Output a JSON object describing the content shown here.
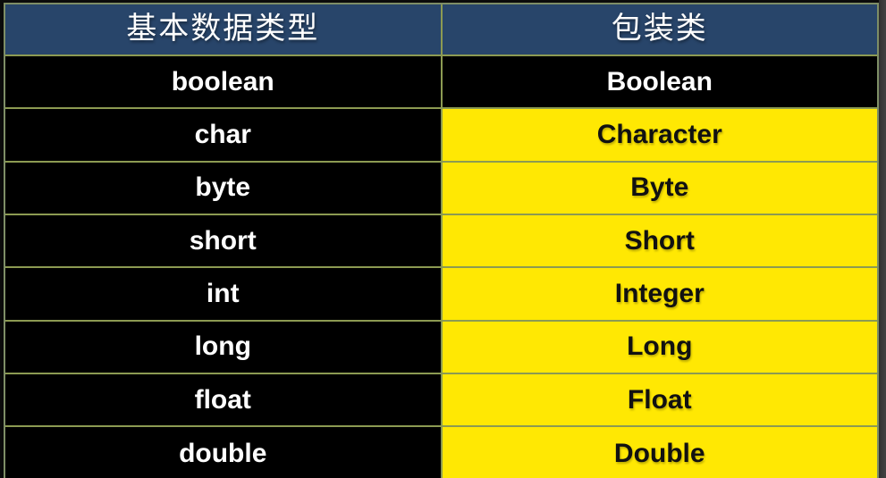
{
  "colors": {
    "header_bg": "#28456a",
    "header_text": "#ffffff",
    "row_bg": "#000000",
    "row_text": "#ffffff",
    "highlight_bg": "#ffe803",
    "highlight_text": "#111111",
    "border": "#8c9a52",
    "outer_border": "#7e8e66",
    "stage_bg": "#0b0b0b",
    "strip_bg": "#3a3a3a"
  },
  "table": {
    "columns": [
      {
        "label": "基本数据类型"
      },
      {
        "label": "包装类"
      }
    ],
    "rows": [
      {
        "primitive": "boolean",
        "wrapper": "Boolean",
        "wrapper_highlighted": false
      },
      {
        "primitive": "char",
        "wrapper": "Character",
        "wrapper_highlighted": true
      },
      {
        "primitive": "byte",
        "wrapper": "Byte",
        "wrapper_highlighted": true
      },
      {
        "primitive": "short",
        "wrapper": "Short",
        "wrapper_highlighted": true
      },
      {
        "primitive": "int",
        "wrapper": "Integer",
        "wrapper_highlighted": true
      },
      {
        "primitive": "long",
        "wrapper": "Long",
        "wrapper_highlighted": true
      },
      {
        "primitive": "float",
        "wrapper": "Float",
        "wrapper_highlighted": true
      },
      {
        "primitive": "double",
        "wrapper": "Double",
        "wrapper_highlighted": true
      }
    ]
  }
}
